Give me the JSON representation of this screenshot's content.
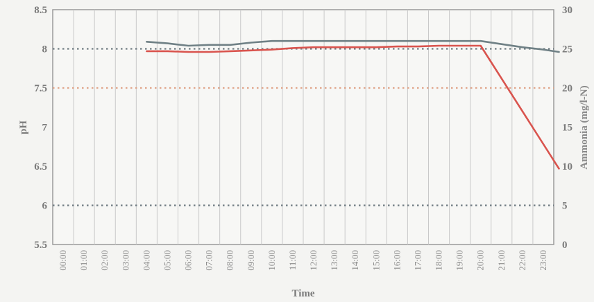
{
  "chart_data": {
    "type": "line",
    "title": "",
    "xlabel": "Time",
    "ylabel": "pH",
    "y2label": "Ammonia (mg/l-N)",
    "ylim": [
      5.5,
      8.5
    ],
    "y2lim": [
      0,
      30
    ],
    "yticks": [
      "5.5",
      "6",
      "6.5",
      "7",
      "7.5",
      "8",
      "8.5"
    ],
    "y2ticks": [
      "0",
      "5",
      "10",
      "15",
      "20",
      "25",
      "30"
    ],
    "categories": [
      "00:00",
      "01:00",
      "02:00",
      "03:00",
      "04:00",
      "05:00",
      "06:00",
      "07:00",
      "08:00",
      "09:00",
      "10:00",
      "11:00",
      "12:00",
      "13:00",
      "14:00",
      "15:00",
      "16:00",
      "17:00",
      "18:00",
      "19:00",
      "20:00",
      "21:00",
      "22:00",
      "23:00"
    ],
    "grid": {
      "vertical": true
    },
    "reference_lines": [
      {
        "axis": "y2",
        "value": 25,
        "color": "#6f7b82"
      },
      {
        "axis": "y2",
        "value": 20,
        "color": "#e0a58a"
      },
      {
        "axis": "y2",
        "value": 5,
        "color": "#6f7b82"
      }
    ],
    "series": [
      {
        "axis": "y",
        "color": "#6f8085",
        "x": [
          "04:00",
          "05:00",
          "06:00",
          "07:00",
          "08:00",
          "09:00",
          "10:00",
          "11:00",
          "12:00",
          "13:00",
          "14:00",
          "15:00",
          "16:00",
          "17:00",
          "18:00",
          "19:00",
          "20:00",
          "21:00",
          "22:00",
          "23:00",
          "23:45"
        ],
        "values": [
          8.09,
          8.07,
          8.04,
          8.05,
          8.05,
          8.08,
          8.1,
          8.1,
          8.1,
          8.1,
          8.1,
          8.1,
          8.1,
          8.1,
          8.1,
          8.1,
          8.1,
          8.06,
          8.02,
          7.99,
          7.96
        ]
      },
      {
        "axis": "y2",
        "color": "#d9544e",
        "x": [
          "04:00",
          "05:00",
          "06:00",
          "07:00",
          "08:00",
          "09:00",
          "10:00",
          "11:00",
          "12:00",
          "13:00",
          "14:00",
          "15:00",
          "16:00",
          "17:00",
          "18:00",
          "19:00",
          "20:00",
          "23:45"
        ],
        "values": [
          24.7,
          24.7,
          24.6,
          24.6,
          24.7,
          24.8,
          24.9,
          25.1,
          25.2,
          25.2,
          25.2,
          25.2,
          25.3,
          25.3,
          25.4,
          25.4,
          25.4,
          9.7
        ]
      }
    ]
  }
}
